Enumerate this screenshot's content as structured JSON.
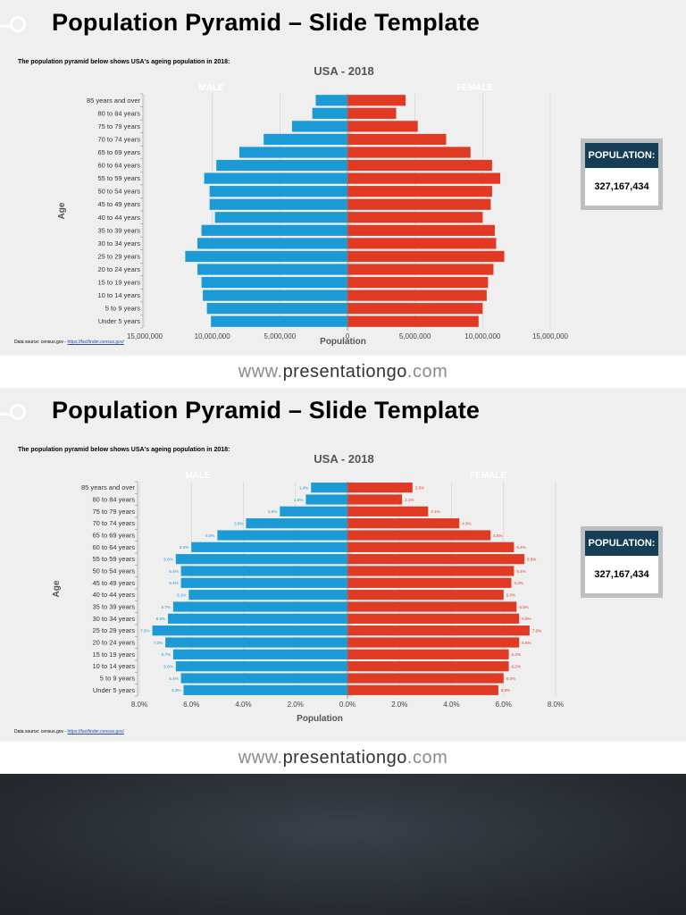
{
  "slide_title": "Population Pyramid – Slide Template",
  "intro_text": "The population pyramid below shows USA's ageing population in 2018:",
  "source_prefix": "Data source: census.gov - ",
  "source_link": "https://factfinder.census.gov/",
  "population_label": "POPULATION:",
  "population_value": "327,167,434",
  "footer": {
    "prefix": "www.",
    "brand": "presentationgo",
    "suffix": ".com"
  },
  "colors": {
    "male": "#1b9ad6",
    "female": "#e03a24",
    "grid": "#d0d0d0",
    "axis": "#7f7f7f",
    "pop_header": "#153e56"
  },
  "chart_data": [
    {
      "type": "bar",
      "orientation": "horizontal-pyramid",
      "title": "USA - 2018",
      "xlabel": "Population",
      "ylabel": "Age",
      "categories": [
        "85 years and over",
        "80 to 84 years",
        "75 to 79 years",
        "70 to 74 years",
        "65 to 69 years",
        "60 to 64 years",
        "55 to 59 years",
        "50 to 54 years",
        "45 to 49 years",
        "40 to 44 years",
        "35 to 39 years",
        "30 to 34 years",
        "25 to 29 years",
        "20 to 24 years",
        "15 to 19 years",
        "10 to 14 years",
        "5 to 9 years",
        "Under 5 years"
      ],
      "series": [
        {
          "name": "MALE",
          "values": [
            2350000,
            2600000,
            4100000,
            6200000,
            8000000,
            9700000,
            10600000,
            10200000,
            10200000,
            9800000,
            10800000,
            11100000,
            12000000,
            11100000,
            10800000,
            10700000,
            10400000,
            10100000
          ]
        },
        {
          "name": "FEMALE",
          "values": [
            4300000,
            3600000,
            5200000,
            7300000,
            9100000,
            10700000,
            11300000,
            10700000,
            10600000,
            10000000,
            10900000,
            11000000,
            11600000,
            10800000,
            10400000,
            10300000,
            10000000,
            9700000
          ]
        }
      ],
      "xlim": [
        -15000000,
        15000000
      ],
      "xticks": [
        {
          "value": -15000000,
          "label": "15,000,000"
        },
        {
          "value": -10000000,
          "label": "10,000,000"
        },
        {
          "value": -5000000,
          "label": "5,000,000"
        },
        {
          "value": 0,
          "label": "0"
        },
        {
          "value": 5000000,
          "label": "5,000,000"
        },
        {
          "value": 10000000,
          "label": "10,000,000"
        },
        {
          "value": 15000000,
          "label": "15,000,000"
        }
      ],
      "grid": true,
      "legend": "top"
    },
    {
      "type": "bar",
      "orientation": "horizontal-pyramid",
      "title": "USA - 2018",
      "xlabel": "Population",
      "ylabel": "Age",
      "categories": [
        "85 years and over",
        "80 to 84 years",
        "75 to 79 years",
        "70 to 74 years",
        "65 to 69 years",
        "60 to 64 years",
        "55 to 59 years",
        "50 to 54 years",
        "45 to 49 years",
        "40 to 44 years",
        "35 to 39 years",
        "30 to 34 years",
        "25 to 29 years",
        "20 to 24 years",
        "15 to 19 years",
        "10 to 14 years",
        "5 to 9 years",
        "Under 5 years"
      ],
      "series": [
        {
          "name": "MALE",
          "values": [
            1.4,
            1.6,
            2.6,
            3.9,
            5.0,
            6.0,
            6.6,
            6.4,
            6.4,
            6.1,
            6.7,
            6.9,
            7.5,
            7.0,
            6.7,
            6.6,
            6.4,
            6.3
          ],
          "labels": [
            "1.4%",
            "1.6%",
            "2.6%",
            "3.9%",
            "5.0%",
            "6.0%",
            "6.6%",
            "6.4%",
            "6.4%",
            "6.1%",
            "6.7%",
            "6.9%",
            "7.5%",
            "7.0%",
            "6.7%",
            "6.6%",
            "6.4%",
            "6.3%"
          ]
        },
        {
          "name": "FEMALE",
          "values": [
            2.5,
            2.1,
            3.1,
            4.3,
            5.5,
            6.4,
            6.8,
            6.4,
            6.3,
            6.0,
            6.5,
            6.6,
            7.0,
            6.6,
            6.2,
            6.2,
            6.0,
            5.8
          ],
          "labels": [
            "2.5%",
            "2.1%",
            "3.1%",
            "4.3%",
            "5.5%",
            "6.4%",
            "6.8%",
            "6.4%",
            "6.3%",
            "6.0%",
            "6.5%",
            "6.6%",
            "7.0%",
            "6.6%",
            "6.2%",
            "6.2%",
            "6.0%",
            "5.8%"
          ]
        }
      ],
      "xlim": [
        -8,
        8
      ],
      "xticks": [
        {
          "value": -8,
          "label": "8.0%"
        },
        {
          "value": -6,
          "label": "6.0%"
        },
        {
          "value": -4,
          "label": "4.0%"
        },
        {
          "value": -2,
          "label": "2.0%"
        },
        {
          "value": 0,
          "label": "0.0%"
        },
        {
          "value": 2,
          "label": "2.0%"
        },
        {
          "value": 4,
          "label": "4.0%"
        },
        {
          "value": 6,
          "label": "6.0%"
        },
        {
          "value": 8,
          "label": "8.0%"
        }
      ],
      "grid": true,
      "legend": "top"
    }
  ]
}
